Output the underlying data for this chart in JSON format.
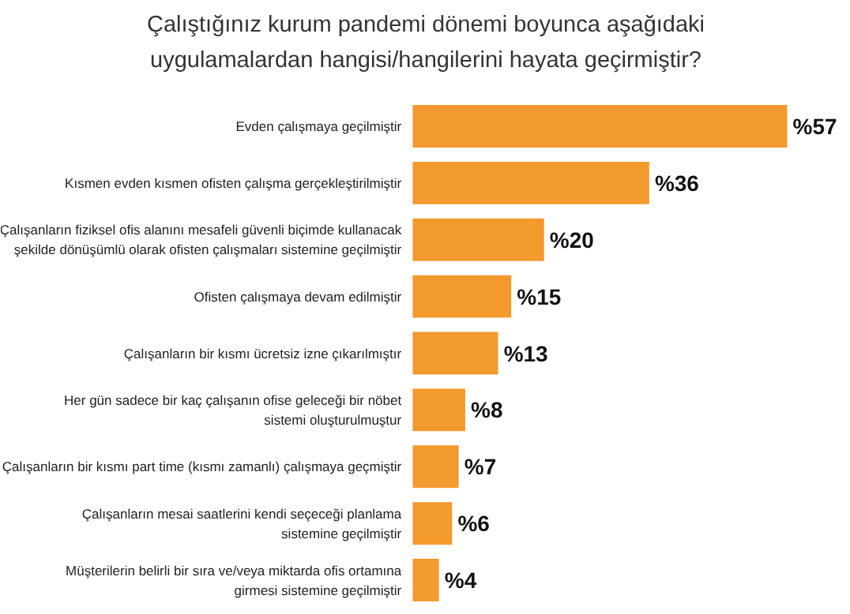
{
  "chart_data": {
    "type": "bar",
    "orientation": "horizontal",
    "title": "Çalıştığınız kurum pandemi dönemi boyunca aşağıdaki\nuygulamalardan hangisi/hangilerini hayata geçirmiştir?",
    "categories": [
      "Evden çalışmaya geçilmiştir",
      "Kısmen evden kısmen ofisten çalışma gerçekleştirilmiştir",
      "Çalışanların fiziksel ofis alanını mesafeli güvenli biçimde kullanacak\nşekilde dönüşümlü olarak ofisten çalışmaları sistemine geçilmiştir",
      "Ofisten çalışmaya devam edilmiştir",
      "Çalışanların bir kısmı ücretsiz izne çıkarılmıştır",
      "Her gün sadece bir kaç çalışanın ofise geleceği bir nöbet\nsistemi oluşturulmuştur",
      "Çalışanların bir kısmı part time (kısmı zamanlı) çalışmaya geçmiştir",
      "Çalışanların mesai saatlerini kendi seçeceği planlama\nsistemine geçilmiştir",
      "Müşterilerin belirli bir sıra ve/veya miktarda ofis ortamına\ngirmesi sistemine geçilmiştir"
    ],
    "values": [
      57,
      36,
      20,
      15,
      13,
      8,
      7,
      6,
      4
    ],
    "value_labels": [
      "%57",
      "%36",
      "%20",
      "%15",
      "%13",
      "%8",
      "%7",
      "%6",
      "%4"
    ],
    "color": "#f39a2e",
    "grid": false
  }
}
